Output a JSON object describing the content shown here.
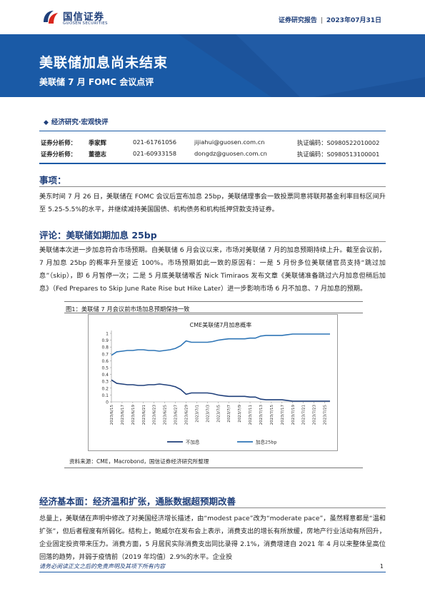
{
  "header": {
    "brand_cn": "国信证券",
    "brand_en": "GUOSEN SECURITIES",
    "report_type": "证券研究报告",
    "date": "2023年07月31日"
  },
  "title": "美联储加息尚未结束",
  "subtitle": "美联储 7 月 FOMC 会议点评",
  "section_tag": "经济研究·宏观快评",
  "analysts": [
    {
      "role": "证券分析师：",
      "name": "季家辉",
      "phone": "021-61761056",
      "email": "jijiahui@guosen.com.cn",
      "cert": "执证编码：S0980522010002"
    },
    {
      "role": "证券分析师：",
      "name": "董德志",
      "phone": "021-60933158",
      "email": "dongdz@guosen.com.cn",
      "cert": "执证编码：S0980513100001"
    }
  ],
  "sections": {
    "event_heading": "事项：",
    "event_text": "美东时间 7 月 26 日，美联储在 FOMC 会议后宣布加息 25bp，美联储理事会一致投票同意将联邦基金利率目标区间升至 5.25-5.5%的水平，并继续减持美国国债、机构债务和机构抵押贷款支持证券。",
    "comment_heading": "评论：美联储如期加息 25bp",
    "comment_text": "美联储本次进一步加息符合市场预期。自美联储 6 月会议以来，市场对美联储 7 月的加息预期持续上升。截至会议前，7 月加息 25bp 的概率升至接近 100%。市场预期如此一致的原因有：一是 5 月份多位美联储官员支持“跳过加息”（skip），即 6 月暂停一次；二是 5 月底美联储喉舌 Nick Timiraos 发布文章《美联储准备跳过六月加息但稍后加息》（Fed Prepares to Skip June Rate Rise but Hike Later）进一步影响市场 6 月不加息、7 月加息的预期。",
    "figure_caption": "图1：美联储 7 月会议前市场加息预期保持一致",
    "figure_source": "资料来源：CME，Macrobond，国信证券经济研究所整理",
    "econ_heading": "经济基本面：经济温和扩张，通胀数据超预期改善",
    "econ_text": "总量上，美联储在声明中修改了对美国经济增长描述，由“modest pace”改为“moderate pace”，虽然释意都是“温和扩张”，但后者程度有所弱化。结构上，鲍威尔在发布会上表示，消费支出的增长有所放缓，房地产行业活动有所回升，企业固定投资带来压力。消费方面，5 月居民实际消费支出同比录得 2.1%，消费增速自 2021 年 4 月以来整体呈高位回落的趋势，并弱于疫情前（2019 年均值）2.9%的水平。企业投"
  },
  "footer": {
    "disclaimer": "请务必阅读正文之后的免责声明及其项下所有内容",
    "page": "1"
  },
  "colors": {
    "brand_blue": "#1a5aa6",
    "series_hike": "#2e75b6",
    "series_hold": "#1f3f7a"
  },
  "chart_data": {
    "type": "line",
    "title": "CME美联储7月加息概率",
    "x": [
      "2023/6/15",
      "2023/6/16",
      "2023/6/17",
      "2023/6/18",
      "2023/6/19",
      "2023/6/20",
      "2023/6/21",
      "2023/6/22",
      "2023/6/23",
      "2023/6/24",
      "2023/6/25",
      "2023/6/26",
      "2023/6/27",
      "2023/6/28",
      "2023/6/29",
      "2023/6/30",
      "2023/7/1",
      "2023/7/2",
      "2023/7/3",
      "2023/7/4",
      "2023/7/5",
      "2023/7/6",
      "2023/7/7",
      "2023/7/8",
      "2023/7/9",
      "2023/7/10",
      "2023/7/11",
      "2023/7/12",
      "2023/7/13",
      "2023/7/14",
      "2023/7/15",
      "2023/7/16",
      "2023/7/17",
      "2023/7/18",
      "2023/7/19",
      "2023/7/20",
      "2023/7/21",
      "2023/7/22",
      "2023/7/23",
      "2023/7/24",
      "2023/7/25",
      "2023/7/26"
    ],
    "x_ticks": [
      "2023/6/15",
      "2023/6/17",
      "2023/6/19",
      "2023/6/21",
      "2023/6/23",
      "2023/6/25",
      "2023/6/27",
      "2023/6/29",
      "2023/7/1",
      "2023/7/3",
      "2023/7/5",
      "2023/7/7",
      "2023/7/9",
      "2023/7/11",
      "2023/7/13",
      "2023/7/15",
      "2023/7/17",
      "2023/7/19",
      "2023/7/21",
      "2023/7/23",
      "2023/7/25"
    ],
    "ylim": [
      0,
      1
    ],
    "y_ticks": [
      0,
      0.1,
      0.2,
      0.3,
      0.4,
      0.5,
      0.6,
      0.7,
      0.8,
      0.9,
      1
    ],
    "series": [
      {
        "name": "不加息",
        "values": [
          0.32,
          0.27,
          0.26,
          0.25,
          0.25,
          0.24,
          0.24,
          0.25,
          0.25,
          0.26,
          0.25,
          0.24,
          0.22,
          0.18,
          0.11,
          0.13,
          0.13,
          0.13,
          0.13,
          0.12,
          0.1,
          0.09,
          0.08,
          0.08,
          0.08,
          0.08,
          0.07,
          0.07,
          0.04,
          0.03,
          0.03,
          0.03,
          0.03,
          0.02,
          0.01,
          0.01,
          0.01,
          0.01,
          0.01,
          0.01,
          0.01,
          0.01
        ]
      },
      {
        "name": "加息25bp",
        "values": [
          0.68,
          0.73,
          0.74,
          0.75,
          0.75,
          0.76,
          0.76,
          0.75,
          0.75,
          0.74,
          0.75,
          0.76,
          0.78,
          0.82,
          0.89,
          0.87,
          0.87,
          0.87,
          0.87,
          0.88,
          0.9,
          0.91,
          0.92,
          0.92,
          0.92,
          0.92,
          0.93,
          0.93,
          0.96,
          0.97,
          0.97,
          0.97,
          0.97,
          0.98,
          0.99,
          0.99,
          0.99,
          0.99,
          0.99,
          0.99,
          0.99,
          0.99
        ]
      }
    ],
    "legend": "bottom",
    "grid": false
  }
}
